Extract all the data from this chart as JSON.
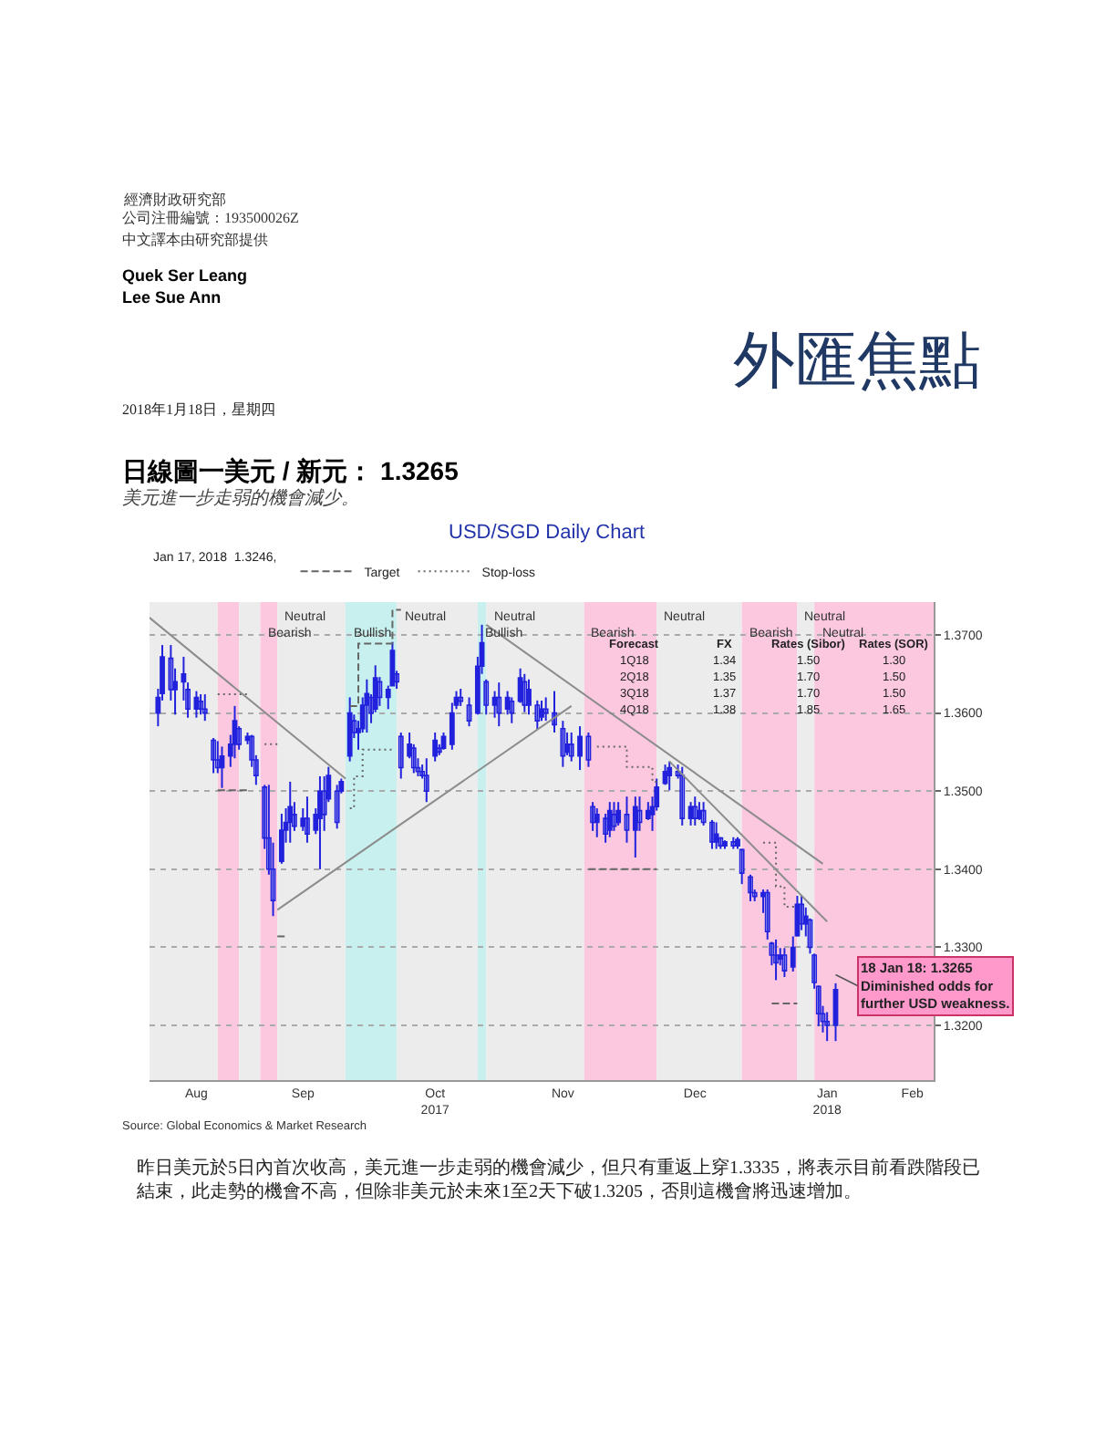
{
  "chart_data": {
    "type": "candlestick",
    "title": "日線圖一美元 / 新元： 1.3265",
    "subtitle": "美元進一步走弱的機會減少。",
    "legend_title": "Jan 17, 2018  1.3246,",
    "color": "#2222dd",
    "x": [
      "2017-08-12",
      "2017-08-13",
      "2017-08-15",
      "2017-08-16",
      "2017-08-18",
      "2017-08-19",
      "2017-08-21",
      "2017-08-22",
      "2017-08-23",
      "2017-08-25",
      "2017-08-26",
      "2017-08-27",
      "2017-08-29",
      "2017-08-30",
      "2017-08-31",
      "2017-09-02",
      "2017-09-03",
      "2017-09-04",
      "2017-09-06",
      "2017-09-07",
      "2017-09-08",
      "2017-09-10",
      "2017-09-11",
      "2017-09-12",
      "2017-09-13",
      "2017-09-15",
      "2017-09-16",
      "2017-09-18",
      "2017-09-19",
      "2017-09-20",
      "2017-09-21",
      "2017-09-23",
      "2017-09-24",
      "2017-09-26",
      "2017-09-27",
      "2017-09-28",
      "2017-09-29",
      "2017-09-30",
      "2017-10-01",
      "2017-10-02",
      "2017-10-03",
      "2017-10-05",
      "2017-10-06",
      "2017-10-07",
      "2017-10-08",
      "2017-10-10",
      "2017-10-11",
      "2017-10-12",
      "2017-10-13",
      "2017-10-14",
      "2017-10-16",
      "2017-10-17",
      "2017-10-18",
      "2017-10-20",
      "2017-10-21",
      "2017-10-22",
      "2017-10-24",
      "2017-10-26",
      "2017-10-27",
      "2017-10-28",
      "2017-10-30",
      "2017-10-31",
      "2017-11-02",
      "2017-11-03",
      "2017-11-05",
      "2017-11-06",
      "2017-11-07",
      "2017-11-09",
      "2017-11-10",
      "2017-11-11",
      "2017-11-13",
      "2017-11-15",
      "2017-11-16",
      "2017-11-17",
      "2017-11-19",
      "2017-11-21",
      "2017-11-22",
      "2017-11-23",
      "2017-11-25",
      "2017-11-26",
      "2017-11-27",
      "2017-11-28",
      "2017-11-30",
      "2017-12-02",
      "2017-12-03",
      "2017-12-05",
      "2017-12-06",
      "2017-12-07",
      "2017-12-09",
      "2017-12-10",
      "2017-12-12",
      "2017-12-13",
      "2017-12-15",
      "2017-12-16",
      "2017-12-17",
      "2017-12-18",
      "2017-12-20",
      "2017-12-21",
      "2017-12-22",
      "2017-12-23",
      "2017-12-25",
      "2017-12-26",
      "2017-12-27",
      "2017-12-29",
      "2017-12-30",
      "2018-01-01",
      "2018-01-02",
      "2018-01-03",
      "2018-01-04",
      "2018-01-05",
      "2018-01-06",
      "2018-01-08",
      "2018-01-09",
      "2018-01-10",
      "2018-01-11",
      "2018-01-12",
      "2018-01-13",
      "2018-01-14",
      "2018-01-15",
      "2018-01-16",
      "2018-01-18"
    ],
    "ohlc": [
      [
        1.36,
        1.3631,
        1.3583,
        1.362
      ],
      [
        1.3625,
        1.3687,
        1.3616,
        1.3672
      ],
      [
        1.367,
        1.3687,
        1.3616,
        1.363
      ],
      [
        1.363,
        1.3657,
        1.3598,
        1.364
      ],
      [
        1.364,
        1.3672,
        1.3616,
        1.365
      ],
      [
        1.363,
        1.3639,
        1.3594,
        1.3605
      ],
      [
        1.3605,
        1.3628,
        1.3594,
        1.362
      ],
      [
        1.3615,
        1.3624,
        1.3598,
        1.3605
      ],
      [
        1.3605,
        1.3624,
        1.359,
        1.36
      ],
      [
        1.3565,
        1.3568,
        1.3523,
        1.354
      ],
      [
        1.354,
        1.3564,
        1.3523,
        1.353
      ],
      [
        1.353,
        1.3557,
        1.3504,
        1.3545
      ],
      [
        1.3545,
        1.3572,
        1.3531,
        1.356
      ],
      [
        1.356,
        1.3609,
        1.3542,
        1.359
      ],
      [
        1.358,
        1.3583,
        1.3553,
        1.356
      ],
      [
        1.3565,
        1.3575,
        1.356,
        1.357
      ],
      [
        1.357,
        1.3572,
        1.3531,
        1.354
      ],
      [
        1.354,
        1.3546,
        1.3508,
        1.352
      ],
      [
        1.3505,
        1.3508,
        1.3426,
        1.344
      ],
      [
        1.344,
        1.3508,
        1.3393,
        1.34
      ],
      [
        1.34,
        1.3434,
        1.334,
        1.336
      ],
      [
        1.341,
        1.3471,
        1.3407,
        1.345
      ],
      [
        1.345,
        1.3478,
        1.3434,
        1.346
      ],
      [
        1.346,
        1.3512,
        1.3434,
        1.348
      ],
      [
        1.347,
        1.3486,
        1.3449,
        1.3455
      ],
      [
        1.3455,
        1.3478,
        1.3449,
        1.3465
      ],
      [
        1.3465,
        1.3493,
        1.3434,
        1.3445
      ],
      [
        1.345,
        1.3478,
        1.3445,
        1.347
      ],
      [
        1.3465,
        1.3519,
        1.34,
        1.35
      ],
      [
        1.35,
        1.3519,
        1.3449,
        1.347
      ],
      [
        1.349,
        1.3531,
        1.3486,
        1.352
      ],
      [
        1.35,
        1.3508,
        1.3452,
        1.346
      ],
      [
        1.35,
        1.3516,
        1.3497,
        1.3512
      ],
      [
        1.3545,
        1.362,
        1.3538,
        1.36
      ],
      [
        1.359,
        1.3598,
        1.3568,
        1.3575
      ],
      [
        1.3575,
        1.359,
        1.3553,
        1.358
      ],
      [
        1.358,
        1.362,
        1.3575,
        1.361
      ],
      [
        1.361,
        1.3643,
        1.3575,
        1.3625
      ],
      [
        1.362,
        1.3624,
        1.3587,
        1.36
      ],
      [
        1.3605,
        1.3661,
        1.3601,
        1.3645
      ],
      [
        1.364,
        1.3646,
        1.3609,
        1.362
      ],
      [
        1.362,
        1.3635,
        1.3605,
        1.363
      ],
      [
        1.3635,
        1.3691,
        1.3635,
        1.368
      ],
      [
        1.365,
        1.3654,
        1.3631,
        1.364
      ],
      [
        1.357,
        1.3575,
        1.3516,
        1.353
      ],
      [
        1.3545,
        1.3575,
        1.3542,
        1.356
      ],
      [
        1.3555,
        1.356,
        1.3523,
        1.353
      ],
      [
        1.353,
        1.3542,
        1.3519,
        1.3525
      ],
      [
        1.3525,
        1.3534,
        1.3516,
        1.352
      ],
      [
        1.352,
        1.3542,
        1.3486,
        1.35
      ],
      [
        1.3545,
        1.3575,
        1.3538,
        1.3565
      ],
      [
        1.3555,
        1.356,
        1.3546,
        1.355
      ],
      [
        1.3555,
        1.3575,
        1.3553,
        1.357
      ],
      [
        1.356,
        1.3613,
        1.3553,
        1.36
      ],
      [
        1.361,
        1.3628,
        1.3605,
        1.362
      ],
      [
        1.362,
        1.3631,
        1.3609,
        1.3615
      ],
      [
        1.361,
        1.362,
        1.3583,
        1.359
      ],
      [
        1.36,
        1.3672,
        1.3598,
        1.366
      ],
      [
        1.366,
        1.3713,
        1.365,
        1.369
      ],
      [
        1.364,
        1.3643,
        1.3598,
        1.361
      ],
      [
        1.361,
        1.3628,
        1.3594,
        1.362
      ],
      [
        1.362,
        1.3639,
        1.3583,
        1.36
      ],
      [
        1.3605,
        1.3628,
        1.3598,
        1.362
      ],
      [
        1.3615,
        1.362,
        1.3587,
        1.36
      ],
      [
        1.3615,
        1.3657,
        1.3613,
        1.3645
      ],
      [
        1.364,
        1.365,
        1.3601,
        1.361
      ],
      [
        1.361,
        1.3643,
        1.3598,
        1.363
      ],
      [
        1.361,
        1.3616,
        1.3579,
        1.359
      ],
      [
        1.3595,
        1.3616,
        1.359,
        1.3605
      ],
      [
        1.3605,
        1.362,
        1.359,
        1.36
      ],
      [
        1.36,
        1.3628,
        1.3575,
        1.3585
      ],
      [
        1.358,
        1.359,
        1.3531,
        1.3545
      ],
      [
        1.355,
        1.3575,
        1.3546,
        1.356
      ],
      [
        1.356,
        1.3575,
        1.3538,
        1.3545
      ],
      [
        1.3545,
        1.3583,
        1.3527,
        1.357
      ],
      [
        1.357,
        1.3575,
        1.3531,
        1.354
      ],
      [
        1.348,
        1.3486,
        1.3449,
        1.346
      ],
      [
        1.346,
        1.3478,
        1.3441,
        1.347
      ],
      [
        1.3465,
        1.3471,
        1.3434,
        1.3445
      ],
      [
        1.345,
        1.3486,
        1.3441,
        1.3475
      ],
      [
        1.347,
        1.3486,
        1.3449,
        1.3455
      ],
      [
        1.346,
        1.3486,
        1.3456,
        1.3475
      ],
      [
        1.347,
        1.3493,
        1.3434,
        1.345
      ],
      [
        1.345,
        1.3493,
        1.3415,
        1.348
      ],
      [
        1.3475,
        1.3493,
        1.3449,
        1.346
      ],
      [
        1.3465,
        1.3486,
        1.3463,
        1.3475
      ],
      [
        1.347,
        1.3493,
        1.3449,
        1.348
      ],
      [
        1.348,
        1.3516,
        1.3475,
        1.3505
      ],
      [
        1.351,
        1.3534,
        1.3508,
        1.3525
      ],
      [
        1.352,
        1.3538,
        1.3501,
        1.353
      ],
      [
        1.3525,
        1.3534,
        1.3516,
        1.352
      ],
      [
        1.352,
        1.3531,
        1.3456,
        1.3465
      ],
      [
        1.3465,
        1.3486,
        1.3456,
        1.348
      ],
      [
        1.348,
        1.3493,
        1.3456,
        1.3465
      ],
      [
        1.3465,
        1.3486,
        1.3463,
        1.3475
      ],
      [
        1.3475,
        1.3486,
        1.3456,
        1.346
      ],
      [
        1.346,
        1.3463,
        1.3426,
        1.3435
      ],
      [
        1.3435,
        1.346,
        1.3426,
        1.3445
      ],
      [
        1.344,
        1.3441,
        1.3426,
        1.343
      ],
      [
        1.343,
        1.3437,
        1.3426,
        1.3435
      ],
      [
        1.3435,
        1.3441,
        1.3426,
        1.343
      ],
      [
        1.343,
        1.3441,
        1.3426,
        1.3438
      ],
      [
        1.3425,
        1.3426,
        1.3381,
        1.3395
      ],
      [
        1.339,
        1.3393,
        1.3359,
        1.337
      ],
      [
        1.337,
        1.3374,
        1.3359,
        1.3365
      ],
      [
        1.3365,
        1.3374,
        1.3344,
        1.337
      ],
      [
        1.337,
        1.3374,
        1.331,
        1.332
      ],
      [
        1.3305,
        1.3307,
        1.3277,
        1.329
      ],
      [
        1.329,
        1.331,
        1.3258,
        1.328
      ],
      [
        1.3285,
        1.3299,
        1.3277,
        1.329
      ],
      [
        1.329,
        1.3299,
        1.3262,
        1.327
      ],
      [
        1.3275,
        1.3314,
        1.3269,
        1.33
      ],
      [
        1.3315,
        1.3366,
        1.3314,
        1.3355
      ],
      [
        1.3355,
        1.3366,
        1.3322,
        1.333
      ],
      [
        1.333,
        1.3351,
        1.3314,
        1.334
      ],
      [
        1.3335,
        1.3337,
        1.3292,
        1.33
      ],
      [
        1.329,
        1.3292,
        1.3247,
        1.3255
      ],
      [
        1.325,
        1.3251,
        1.3199,
        1.3215
      ],
      [
        1.3215,
        1.3225,
        1.3191,
        1.3205
      ],
      [
        1.3205,
        1.3217,
        1.318,
        1.32
      ],
      [
        1.32,
        1.3254,
        1.318,
        1.3246
      ]
    ],
    "series": [
      {
        "name": "Target",
        "type": "line",
        "line_style": "dashed",
        "color": "#666666",
        "x": [
          "2017-08-26",
          "2017-09-02"
        ],
        "values": [
          1.3501,
          1.3501
        ]
      },
      {
        "type": "line",
        "line_style": "dashed",
        "color": "#666666",
        "x": [
          "2017-09-09",
          "2017-09-11"
        ],
        "values": [
          1.3314,
          1.3314
        ]
      },
      {
        "type": "line",
        "line_style": "dashed",
        "color": "#666666",
        "x": [
          "2017-09-26",
          "2017-09-28",
          "2017-09-28",
          "2017-10-06",
          "2017-10-06",
          "2017-10-08"
        ],
        "values": [
          1.3609,
          1.3609,
          1.3689,
          1.3689,
          1.3732,
          1.3732
        ]
      },
      {
        "type": "line",
        "line_style": "dashed",
        "color": "#666666",
        "x": [
          "2017-11-21",
          "2017-12-07"
        ],
        "values": [
          1.34,
          1.34
        ]
      },
      {
        "type": "line",
        "line_style": "dashed",
        "color": "#666666",
        "x": [
          "2018-01-03",
          "2018-01-09"
        ],
        "values": [
          1.3228,
          1.3228
        ]
      },
      {
        "name": "Stop-loss",
        "type": "line",
        "line_style": "dotted",
        "color": "#666666",
        "x": [
          "2017-08-26",
          "2017-09-02"
        ],
        "values": [
          1.3624,
          1.3624
        ]
      },
      {
        "type": "line",
        "line_style": "dotted",
        "color": "#666666",
        "x": [
          "2017-09-06",
          "2017-09-09"
        ],
        "values": [
          1.356,
          1.356
        ]
      },
      {
        "type": "line",
        "line_style": "dotted",
        "color": "#666666",
        "x": [
          "2017-09-26",
          "2017-09-27",
          "2017-09-27",
          "2017-09-29",
          "2017-09-29",
          "2017-10-06"
        ],
        "values": [
          1.3478,
          1.3478,
          1.3519,
          1.3519,
          1.3553,
          1.3553
        ]
      },
      {
        "type": "line",
        "line_style": "dotted",
        "color": "#666666",
        "x": [
          "2017-11-23",
          "2017-11-30",
          "2017-11-30",
          "2017-12-06",
          "2017-12-06",
          "2017-12-07"
        ],
        "values": [
          1.3557,
          1.3557,
          1.3531,
          1.3531,
          1.3512,
          1.3512
        ]
      },
      {
        "type": "line",
        "line_style": "dotted",
        "color": "#666666",
        "x": [
          "2018-01-01",
          "2018-01-04",
          "2018-01-04",
          "2018-01-06",
          "2018-01-06",
          "2018-01-09"
        ],
        "values": [
          1.3434,
          1.3434,
          1.3378,
          1.3378,
          1.3352,
          1.3352
        ]
      },
      {
        "type": "line",
        "line_style": "solid",
        "color": "#8c8c8c",
        "x": [
          "2017-08-10",
          "2017-09-25"
        ],
        "values": [
          1.3722,
          1.3516
        ]
      },
      {
        "type": "line",
        "line_style": "solid",
        "color": "#8c8c8c",
        "x": [
          "2017-09-09",
          "2017-11-17"
        ],
        "values": [
          1.3348,
          1.3609
        ]
      },
      {
        "type": "line",
        "line_style": "solid",
        "color": "#8c8c8c",
        "x": [
          "2017-10-28",
          "2018-01-15"
        ],
        "values": [
          1.3713,
          1.3407
        ]
      },
      {
        "type": "line",
        "line_style": "solid",
        "color": "#8c8c8c",
        "x": [
          "2017-12-10",
          "2018-01-16"
        ],
        "values": [
          1.3538,
          1.3333
        ]
      }
    ],
    "bands": [
      {
        "axis": "x",
        "from": "2017-08-10",
        "to": "2017-08-26",
        "label": null,
        "color": "#ececec"
      },
      {
        "axis": "x",
        "from": "2017-08-26",
        "to": "2017-08-31",
        "label": null,
        "color": "#fcc8e0"
      },
      {
        "axis": "x",
        "from": "2017-08-31",
        "to": "2017-09-05",
        "label": null,
        "color": "#ececec"
      },
      {
        "axis": "x",
        "from": "2017-09-05",
        "to": "2017-09-09",
        "label": "Bearish",
        "color": "#fcc8e0"
      },
      {
        "axis": "x",
        "from": "2017-09-09",
        "to": "2017-09-25",
        "label": "Neutral",
        "color": "#ececec"
      },
      {
        "axis": "x",
        "from": "2017-09-25",
        "to": "2017-10-07",
        "label": "Bullish",
        "color": "#c8f0ee"
      },
      {
        "axis": "x",
        "from": "2017-10-07",
        "to": "2017-10-26",
        "label": "Neutral",
        "color": "#ececec"
      },
      {
        "axis": "x",
        "from": "2017-10-26",
        "to": "2017-10-28",
        "label": "Bullish",
        "color": "#c8f0ee"
      },
      {
        "axis": "x",
        "from": "2017-10-28",
        "to": "2017-11-20",
        "label": "Neutral",
        "color": "#ececec"
      },
      {
        "axis": "x",
        "from": "2017-11-20",
        "to": "2017-12-07",
        "label": "Bearish",
        "color": "#fcc8e0"
      },
      {
        "axis": "x",
        "from": "2017-12-07",
        "to": "2017-12-27",
        "label": "Neutral",
        "color": "#ececec"
      },
      {
        "axis": "x",
        "from": "2017-12-27",
        "to": "2018-01-09",
        "label": "Bearish",
        "color": "#fcc8e0"
      },
      {
        "axis": "x",
        "from": "2018-01-09",
        "to": "2018-01-13",
        "label": "Neutral",
        "color": "#ececec"
      },
      {
        "axis": "x",
        "from": "2018-01-13",
        "to": "2018-02-10",
        "label": "Neutral",
        "color": "#fcc8e0"
      }
    ],
    "xlim": [
      "2017-08-10",
      "2018-02-10"
    ],
    "xticks": [
      {
        "value": "2017-08-21",
        "label": "Aug"
      },
      {
        "value": "2017-09-15",
        "label": "Sep"
      },
      {
        "value": "2017-10-16",
        "label": "Oct\n2017"
      },
      {
        "value": "2017-11-15",
        "label": "Nov"
      },
      {
        "value": "2017-12-16",
        "label": "Dec"
      },
      {
        "value": "2018-01-16",
        "label": "Jan\n2018"
      },
      {
        "value": "2018-02-05",
        "label": "Feb"
      }
    ],
    "ylim": [
      1.313,
      1.3742
    ],
    "yticks": [
      {
        "value": 1.32,
        "label": "1.3200"
      },
      {
        "value": 1.33,
        "label": "1.3300"
      },
      {
        "value": 1.34,
        "label": "1.3400"
      },
      {
        "value": 1.35,
        "label": "1.3500"
      },
      {
        "value": 1.36,
        "label": "1.3600"
      },
      {
        "value": 1.37,
        "label": "1.3700"
      }
    ],
    "grid": "y",
    "legend": "top left",
    "annotations": [
      {
        "text": "18 Jan 18: 1.3265\nDiminished odds for\nfurther USD weakness.",
        "x": "2018-01-18",
        "y": 1.3265
      },
      "經濟財政研究部",
      "公司注冊編號：193500026Z",
      "中文譯本由研究部提供",
      "Quek Ser Leang",
      "Lee Sue Ann",
      "外匯焦點",
      "2018年1月18日，星期四",
      "USD/SGD Daily Chart",
      "Forecast",
      "FX",
      "Rates (Sibor)",
      "Rates (SOR)",
      "1Q18",
      "1.34",
      "1.50",
      "1.30",
      "2Q18",
      "1.35",
      "1.70",
      "1.50",
      "3Q18",
      "1.37",
      "1.70",
      "1.50",
      "4Q18",
      "1.38",
      "1.85",
      "1.65",
      "Source: Global Economics & Market Research",
      "昨日美元於5日內首次收高，美元進一步走弱的機會減少，但只有重返上穿1.3335，將表示目前看跌階段已結束，此走勢的機會不高，但除非美元於未來1至2天下破1.3205，否則這機會將迅速增加。"
    ]
  }
}
